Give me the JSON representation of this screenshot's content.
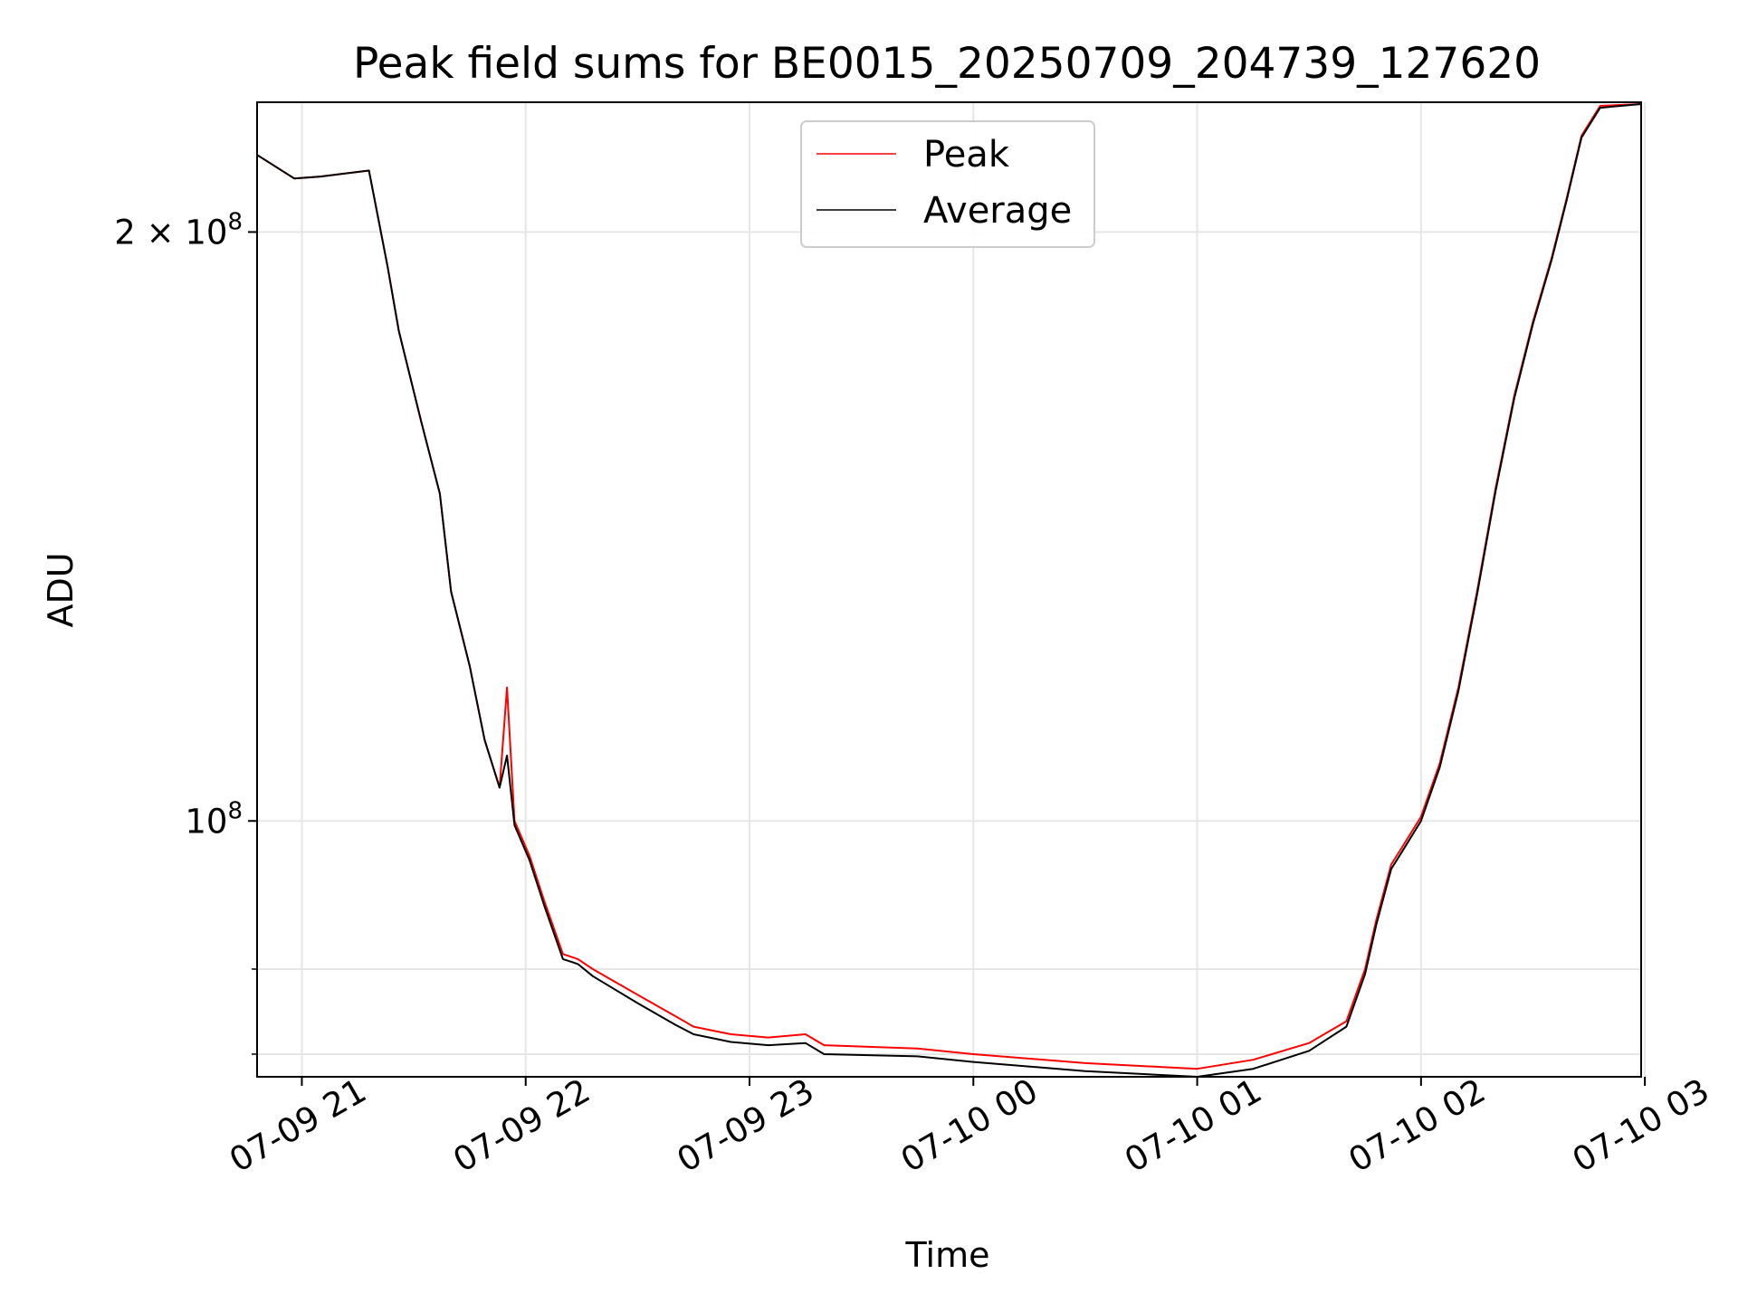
{
  "chart_data": {
    "type": "line",
    "title": "Peak field sums for BE0015_20250709_204739_127620",
    "xlabel": "Time",
    "ylabel": "ADU",
    "yscale": "log",
    "xlim": [
      "07-09 20:48",
      "07-10 02:59"
    ],
    "ylim": [
      74000000,
      233000000
    ],
    "grid": true,
    "legend": {
      "placement": "upper center",
      "entries": [
        "Peak",
        "Average"
      ]
    },
    "x_ticks": [
      "07-09 21",
      "07-09 22",
      "07-09 23",
      "07-10 00",
      "07-10 01",
      "07-10 02",
      "07-10 03"
    ],
    "y_ticks": [
      {
        "value": 100000000,
        "label_base": "10",
        "label_exp": "8"
      },
      {
        "value": 200000000,
        "label_base": "2 × 10",
        "label_exp": "8"
      }
    ],
    "y_minor_ticks": [
      76000000,
      84000000
    ],
    "x": [
      "20:48",
      "20:58",
      "21:05",
      "21:18",
      "21:23",
      "21:26",
      "21:32",
      "21:37",
      "21:40",
      "21:45",
      "21:49",
      "21:53",
      "21:55",
      "21:57",
      "22:01",
      "22:05",
      "22:10",
      "22:14",
      "22:18",
      "22:30",
      "22:40",
      "22:45",
      "22:55",
      "23:05",
      "23:15",
      "23:20",
      "23:45",
      "00:00",
      "00:30",
      "01:00",
      "01:15",
      "01:30",
      "01:40",
      "01:45",
      "01:48",
      "01:52",
      "01:55",
      "02:00",
      "02:05",
      "02:10",
      "02:15",
      "02:20",
      "02:25",
      "02:30",
      "02:35",
      "02:39",
      "02:43",
      "02:48",
      "02:59"
    ],
    "series": [
      {
        "name": "Peak",
        "color": "#ff0000",
        "values": [
          219000000,
          213000000,
          213500000,
          215000000,
          192000000,
          178000000,
          160000000,
          147000000,
          131000000,
          120000000,
          110000000,
          104000000,
          117000000,
          100000000,
          96000000,
          91000000,
          85500000,
          85000000,
          84000000,
          81500000,
          79500000,
          78500000,
          77800000,
          77500000,
          77800000,
          76800000,
          76500000,
          76000000,
          75200000,
          74700000,
          75500000,
          77000000,
          79000000,
          84000000,
          89000000,
          95000000,
          97000000,
          100500000,
          107000000,
          117000000,
          131000000,
          148000000,
          165000000,
          180000000,
          194000000,
          208000000,
          224000000,
          232000000,
          232500000
        ]
      },
      {
        "name": "Average",
        "color": "#000000",
        "values": [
          219000000,
          213000000,
          213500000,
          215000000,
          192000000,
          178000000,
          160000000,
          147000000,
          131000000,
          120000000,
          110000000,
          104000000,
          108000000,
          99500000,
          95500000,
          90500000,
          85000000,
          84500000,
          83300000,
          80700000,
          78700000,
          77800000,
          77100000,
          76800000,
          77000000,
          76000000,
          75800000,
          75300000,
          74500000,
          74000000,
          74700000,
          76300000,
          78500000,
          83500000,
          88500000,
          94500000,
          96500000,
          100000000,
          106500000,
          116500000,
          130500000,
          147500000,
          164500000,
          179500000,
          193500000,
          207500000,
          223500000,
          231500000,
          232500000
        ]
      }
    ]
  }
}
